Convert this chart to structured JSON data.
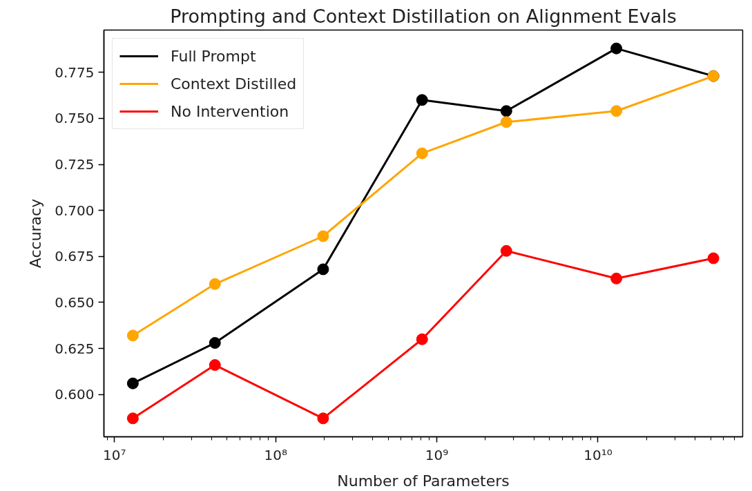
{
  "chart_data": {
    "type": "line",
    "title": "Prompting and Context Distillation on Alignment Evals",
    "xlabel": "Number of Parameters",
    "ylabel": "Accuracy",
    "x": [
      13000000.0,
      42000000.0,
      197000000.0,
      810000000.0,
      2700000000.0,
      13000000000.0,
      52000000000.0
    ],
    "series": [
      {
        "name": "Full Prompt",
        "color": "#000000",
        "values": [
          0.606,
          0.628,
          0.668,
          0.76,
          0.754,
          0.788,
          0.773
        ]
      },
      {
        "name": "Context Distilled",
        "color": "#ffa500",
        "values": [
          0.632,
          0.66,
          0.686,
          0.731,
          0.748,
          0.754,
          0.773
        ]
      },
      {
        "name": "No Intervention",
        "color": "#ff0000",
        "values": [
          0.587,
          0.616,
          0.587,
          0.63,
          0.678,
          0.663,
          0.674
        ]
      }
    ],
    "log": "x",
    "xlim": [
      8600000.0,
      79000000000.0
    ],
    "xticks": [
      {
        "value": 10000000.0,
        "label": "10⁷"
      },
      {
        "value": 100000000.0,
        "label": "10⁸"
      },
      {
        "value": 1000000000.0,
        "label": "10⁹"
      },
      {
        "value": 10000000000.0,
        "label": "10¹⁰"
      }
    ],
    "ylim": [
      0.577,
      0.798
    ],
    "yticks": [
      {
        "value": 0.6,
        "label": "0.600"
      },
      {
        "value": 0.625,
        "label": "0.625"
      },
      {
        "value": 0.65,
        "label": "0.650"
      },
      {
        "value": 0.675,
        "label": "0.675"
      },
      {
        "value": 0.7,
        "label": "0.700"
      },
      {
        "value": 0.725,
        "label": "0.725"
      },
      {
        "value": 0.75,
        "label": "0.750"
      },
      {
        "value": 0.775,
        "label": "0.775"
      }
    ],
    "grid": false,
    "legend": "top left",
    "marker": "circle",
    "line_style": "solid"
  }
}
